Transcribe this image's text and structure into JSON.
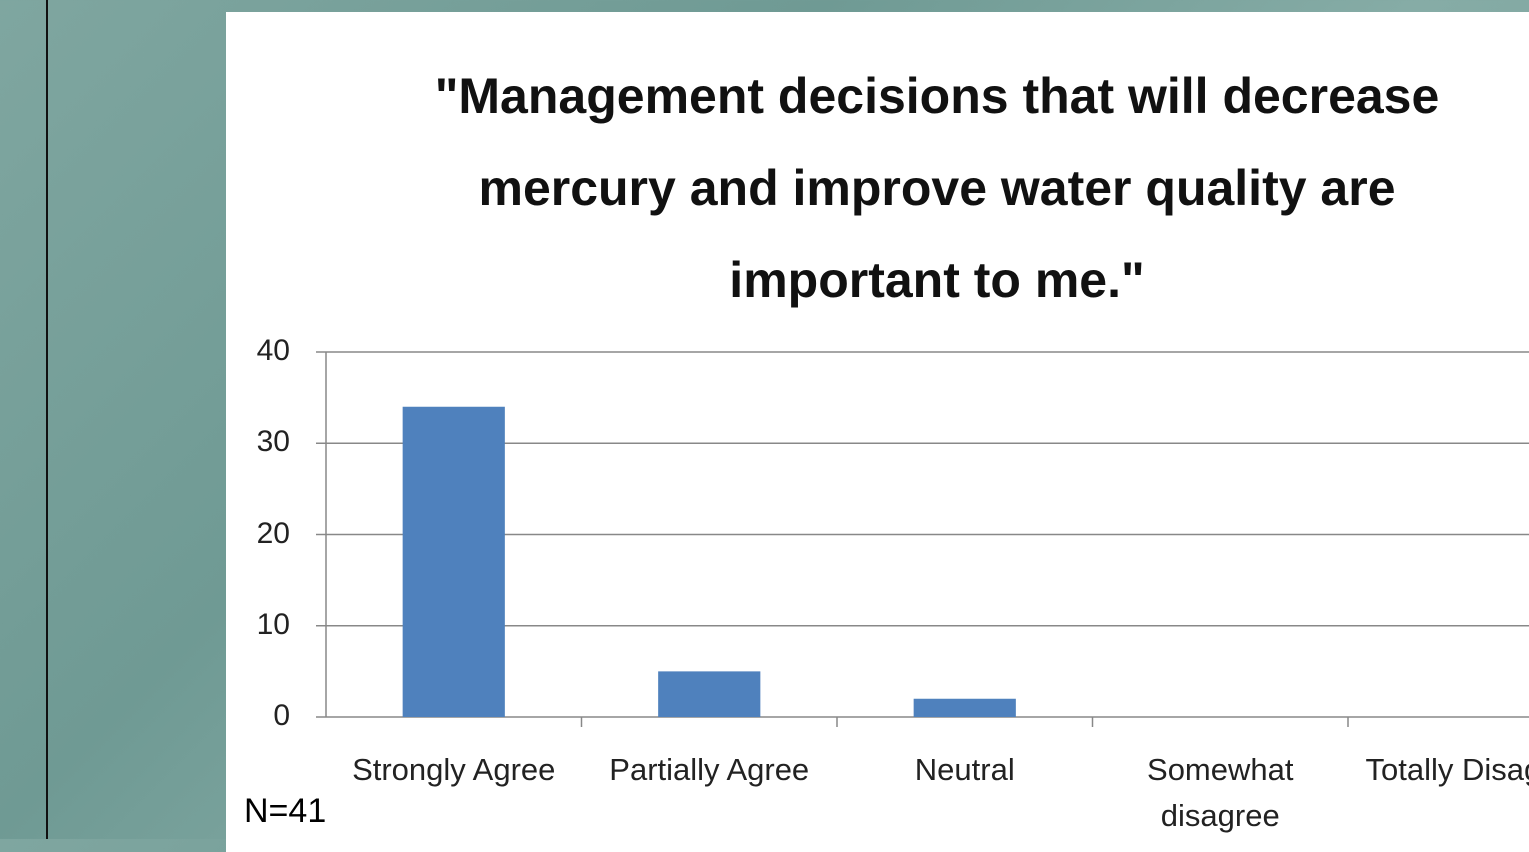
{
  "chart_data": {
    "type": "bar",
    "title": "\"Management decisions that will decrease mercury and improve water quality are important to me.\"",
    "categories": [
      "Strongly Agree",
      "Partially Agree",
      "Neutral",
      "Somewhat disagree",
      "Totally Disagree"
    ],
    "values": [
      34,
      5,
      2,
      0,
      0
    ],
    "color": "#4f81bd",
    "ylim": [
      0,
      40
    ],
    "yticks": [
      0,
      10,
      20,
      30,
      40
    ],
    "grid": true,
    "annotation": "N=41"
  }
}
